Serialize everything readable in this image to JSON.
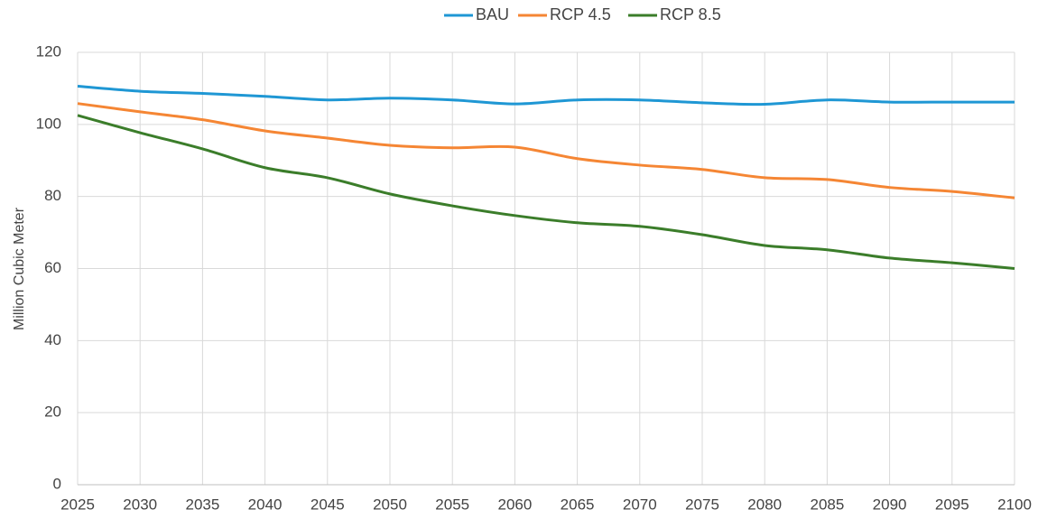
{
  "chart_data": {
    "type": "line",
    "y_label": "Million Cubic Meter",
    "x": [
      2025,
      2030,
      2035,
      2040,
      2045,
      2050,
      2055,
      2060,
      2065,
      2070,
      2075,
      2080,
      2085,
      2090,
      2095,
      2100
    ],
    "xlim": [
      2025,
      2100
    ],
    "xticks": [
      2025,
      2030,
      2035,
      2040,
      2045,
      2050,
      2055,
      2060,
      2065,
      2070,
      2075,
      2080,
      2085,
      2090,
      2095,
      2100
    ],
    "ylim": [
      0,
      120
    ],
    "yticks": [
      0,
      20,
      40,
      60,
      80,
      100,
      120
    ],
    "grid": true,
    "legend": "top",
    "series": [
      {
        "name": "BAU",
        "color": "#1f97d4",
        "values": [
          110.6,
          109.2,
          108.6,
          107.8,
          106.8,
          107.3,
          106.8,
          105.7,
          106.8,
          106.8,
          106.0,
          105.6,
          106.8,
          106.2,
          106.2,
          106.2
        ]
      },
      {
        "name": "RCP 4.5",
        "color": "#f58634",
        "values": [
          105.8,
          103.5,
          101.3,
          98.2,
          96.2,
          94.2,
          93.5,
          93.7,
          90.5,
          88.7,
          87.5,
          85.2,
          84.7,
          82.5,
          81.4,
          79.6
        ]
      },
      {
        "name": "RCP 8.5",
        "color": "#3b7d2a",
        "values": [
          102.5,
          97.7,
          93.2,
          88.0,
          85.2,
          80.7,
          77.4,
          74.7,
          72.7,
          71.7,
          69.4,
          66.4,
          65.2,
          62.9,
          61.6,
          60.0
        ]
      }
    ]
  }
}
